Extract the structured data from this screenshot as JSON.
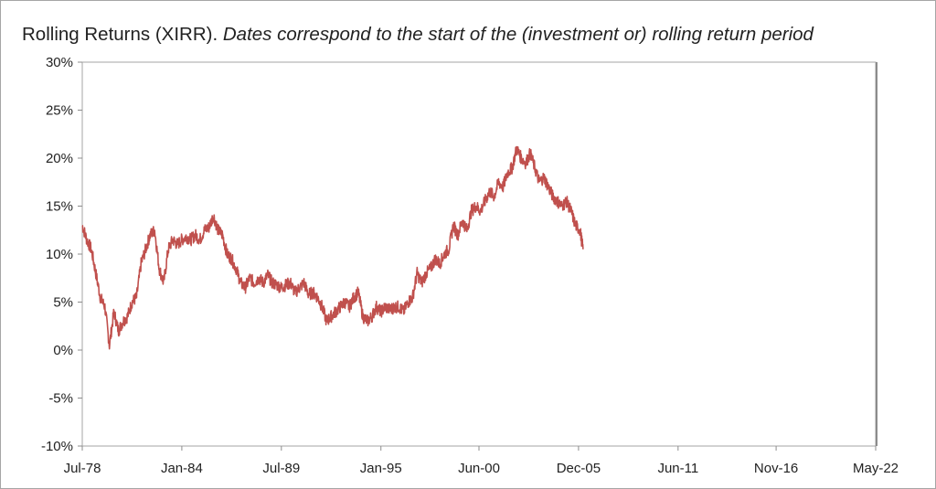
{
  "chart_data": {
    "type": "line",
    "title": "Rolling Returns (XIRR).",
    "subtitle": "Dates correspond to the start of the (investment or) rolling return period",
    "xlabel": "",
    "ylabel": "",
    "x_tick_labels": [
      "Jul-78",
      "Jan-84",
      "Jul-89",
      "Jan-95",
      "Jun-00",
      "Dec-05",
      "Jun-11",
      "Nov-16",
      "May-22"
    ],
    "x_ticks": [
      "1978-07",
      "1984-01",
      "1989-07",
      "1995-01",
      "2000-06",
      "2005-12",
      "2011-06",
      "2016-11",
      "2022-05"
    ],
    "xlim": [
      "1978-07",
      "2022-05"
    ],
    "y_tick_labels": [
      "30%",
      "25%",
      "20%",
      "15%",
      "10%",
      "5%",
      "0%",
      "-5%",
      "-10%"
    ],
    "ylim": [
      -10,
      30
    ],
    "grid": false,
    "legend": "none",
    "color": "#c0504d",
    "series": [
      {
        "x": [
          "1978-07",
          "1978-10",
          "1979-01",
          "1979-04",
          "1979-07",
          "1979-10",
          "1980-01",
          "1980-04",
          "1980-07",
          "1980-10",
          "1981-01",
          "1981-04",
          "1981-07",
          "1981-10",
          "1982-01",
          "1982-04",
          "1982-07",
          "1982-10",
          "1983-01",
          "1983-04",
          "1983-07",
          "1983-10",
          "1984-01",
          "1984-04",
          "1984-07",
          "1984-10",
          "1985-01",
          "1985-04",
          "1985-07",
          "1985-10",
          "1986-01",
          "1986-04",
          "1986-07",
          "1986-10",
          "1987-01",
          "1987-04",
          "1987-07",
          "1987-10",
          "1988-01",
          "1988-04",
          "1988-07",
          "1988-10",
          "1989-01",
          "1989-04",
          "1989-07",
          "1989-10",
          "1990-01",
          "1990-04",
          "1990-07",
          "1990-10",
          "1991-01",
          "1991-04",
          "1991-07",
          "1991-10",
          "1992-01",
          "1992-04",
          "1992-07",
          "1992-10",
          "1993-01",
          "1993-04",
          "1993-07",
          "1993-10",
          "1994-01",
          "1994-04",
          "1994-07",
          "1994-10",
          "1995-01",
          "1995-04",
          "1995-07",
          "1995-10",
          "1996-01",
          "1996-04",
          "1996-07",
          "1996-10",
          "1997-01",
          "1997-04",
          "1997-07",
          "1997-10",
          "1998-01",
          "1998-04",
          "1998-07",
          "1998-10",
          "1999-01",
          "1999-04",
          "1999-07",
          "1999-10",
          "2000-01",
          "2000-04",
          "2000-07",
          "2000-10",
          "2001-01",
          "2001-04",
          "2001-07",
          "2001-10",
          "2002-01",
          "2002-04",
          "2002-07",
          "2002-10",
          "2003-01",
          "2003-04",
          "2003-07",
          "2003-10",
          "2004-01",
          "2004-04",
          "2004-07",
          "2004-10",
          "2005-01",
          "2005-04",
          "2005-07",
          "2005-10",
          "2006-01",
          "2006-03"
        ],
        "y": [
          13.0,
          11.5,
          10.5,
          8.0,
          5.5,
          4.5,
          0.5,
          4.0,
          2.0,
          3.0,
          3.5,
          5.0,
          5.5,
          9.0,
          10.5,
          12.0,
          12.5,
          8.5,
          7.0,
          10.5,
          11.5,
          11.0,
          11.5,
          11.8,
          11.5,
          12.0,
          11.5,
          12.5,
          12.8,
          14.0,
          12.5,
          12.0,
          10.0,
          9.5,
          8.5,
          7.0,
          6.5,
          7.5,
          7.0,
          7.5,
          7.0,
          7.8,
          7.0,
          6.8,
          6.5,
          6.8,
          7.0,
          6.0,
          6.5,
          7.0,
          5.8,
          6.0,
          5.5,
          4.5,
          3.0,
          3.5,
          4.0,
          4.5,
          5.0,
          4.5,
          5.5,
          6.0,
          3.5,
          3.0,
          3.5,
          4.5,
          4.0,
          4.5,
          4.2,
          4.5,
          4.5,
          4.0,
          5.0,
          5.5,
          8.0,
          7.0,
          8.0,
          8.5,
          9.5,
          9.0,
          10.0,
          10.5,
          13.0,
          12.0,
          13.5,
          12.5,
          14.5,
          15.0,
          14.5,
          15.5,
          16.5,
          16.0,
          17.5,
          17.0,
          18.5,
          19.0,
          21.0,
          20.0,
          19.5,
          20.5,
          19.0,
          17.5,
          18.0,
          17.0,
          16.0,
          15.5,
          15.0,
          15.5,
          14.5,
          13.0,
          12.5,
          10.5
        ]
      }
    ]
  }
}
